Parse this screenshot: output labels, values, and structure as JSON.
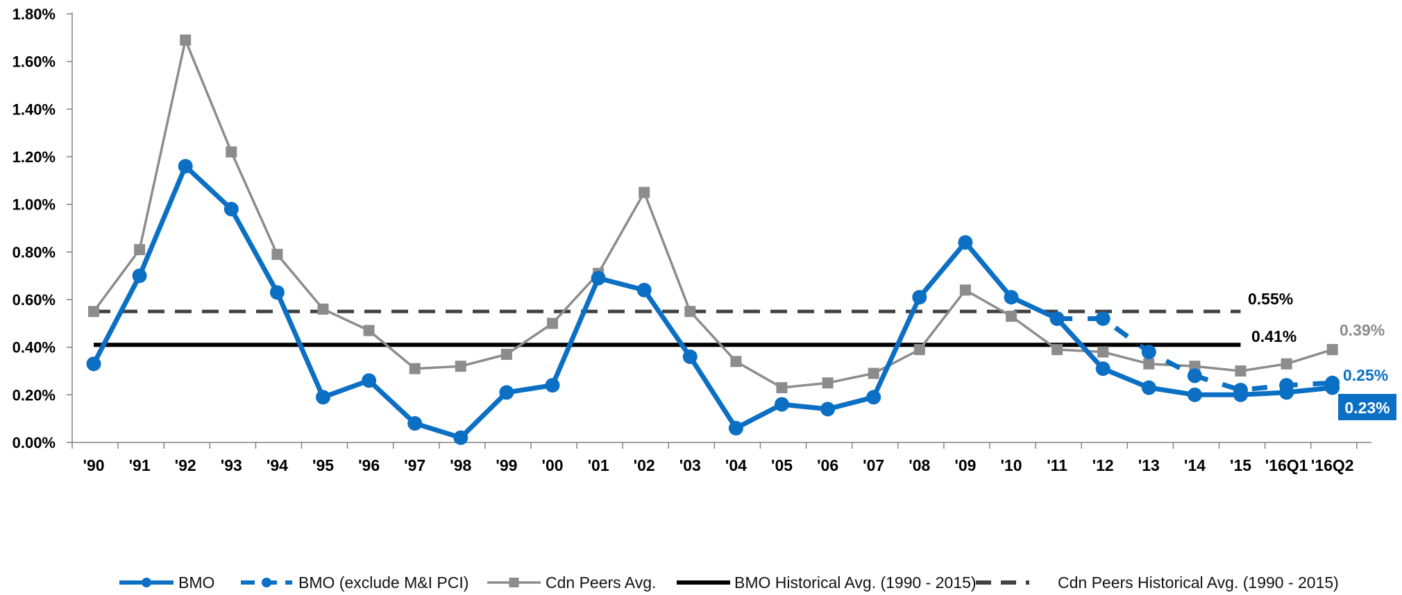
{
  "chart_data": {
    "type": "line",
    "title": "",
    "xlabel": "",
    "ylabel": "",
    "ylim": [
      0,
      1.8
    ],
    "yticks": [
      0,
      0.2,
      0.4,
      0.6,
      0.8,
      1.0,
      1.2,
      1.4,
      1.6,
      1.8
    ],
    "ytick_labels": [
      "0.00%",
      "0.20%",
      "0.40%",
      "0.60%",
      "0.80%",
      "1.00%",
      "1.20%",
      "1.40%",
      "1.60%",
      "1.80%"
    ],
    "categories": [
      "'90",
      "'91",
      "'92",
      "'93",
      "'94",
      "'95",
      "'96",
      "'97",
      "'98",
      "'99",
      "'00",
      "'01",
      "'02",
      "'03",
      "'04",
      "'05",
      "'06",
      "'07",
      "'08",
      "'09",
      "'10",
      "'11",
      "'12",
      "'13",
      "'14",
      "'15",
      "'16Q1",
      "'16Q2"
    ],
    "grid": false,
    "legend_position": "bottom",
    "series": [
      {
        "name": "BMO",
        "color": "#0B6FC4",
        "style": "solid",
        "marker": "circle",
        "values": [
          0.33,
          0.7,
          1.16,
          0.98,
          0.63,
          0.19,
          0.26,
          0.08,
          0.02,
          0.21,
          0.24,
          0.69,
          0.64,
          0.36,
          0.06,
          0.16,
          0.14,
          0.19,
          0.61,
          0.84,
          0.61,
          0.52,
          0.31,
          0.23,
          0.2,
          0.2,
          0.21,
          0.23
        ]
      },
      {
        "name": "BMO (exclude M&I PCI)",
        "color": "#0B6FC4",
        "style": "dashed",
        "marker": "circle",
        "values": [
          null,
          null,
          null,
          null,
          null,
          null,
          null,
          null,
          null,
          null,
          null,
          null,
          null,
          null,
          null,
          null,
          null,
          null,
          null,
          null,
          null,
          0.52,
          0.52,
          0.38,
          0.28,
          0.22,
          0.24,
          0.25
        ]
      },
      {
        "name": "Cdn Peers Avg.",
        "color": "#8C8C8C",
        "style": "solid",
        "marker": "square",
        "values": [
          0.55,
          0.81,
          1.69,
          1.22,
          0.79,
          0.56,
          0.47,
          0.31,
          0.32,
          0.37,
          0.5,
          0.71,
          1.05,
          0.55,
          0.34,
          0.23,
          0.25,
          0.29,
          0.39,
          0.64,
          0.53,
          0.39,
          0.38,
          0.33,
          0.32,
          0.3,
          0.33,
          0.39
        ]
      },
      {
        "name": "BMO Historical Avg. (1990 - 2015)",
        "color": "#000000",
        "style": "solid",
        "marker": "none",
        "constant": 0.41,
        "range": [
          "'90",
          "'15"
        ]
      },
      {
        "name": "Cdn Peers Historical Avg. (1990 - 2015)",
        "color": "#404040",
        "style": "dashed",
        "marker": "none",
        "constant": 0.55,
        "range": [
          "'90",
          "'15"
        ]
      }
    ],
    "annotations": [
      {
        "text": "0.55%",
        "color": "#000000"
      },
      {
        "text": "0.41%",
        "color": "#000000"
      },
      {
        "text": "0.39%",
        "color": "#8C8C8C"
      },
      {
        "text": "0.25%",
        "color": "#0B6FC4"
      },
      {
        "text": "0.23%",
        "color": "#FFFFFF",
        "background": "#0B6FC4"
      }
    ]
  }
}
